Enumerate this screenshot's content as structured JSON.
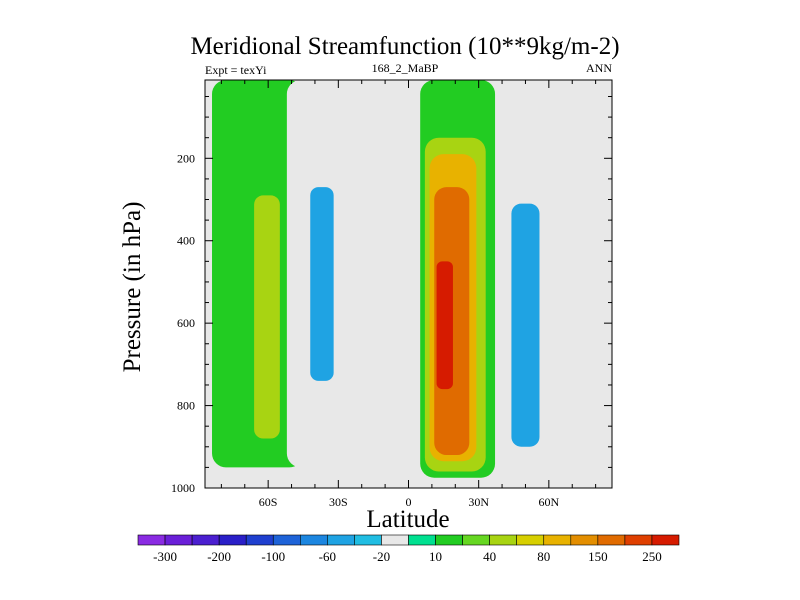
{
  "chart_data": {
    "type": "heatmap",
    "title": "Meridional Streamfunction (10**9kg/m-2)",
    "left_label": "Expt = texYi",
    "center_label": "168_2_MaBP",
    "right_label": "ANN",
    "xlabel": "Latitude",
    "ylabel": "Pressure (in hPa)",
    "x_ticks": [
      {
        "value": -60,
        "label": "60S"
      },
      {
        "value": -30,
        "label": "30S"
      },
      {
        "value": 0,
        "label": "0"
      },
      {
        "value": 30,
        "label": "30N"
      },
      {
        "value": 60,
        "label": "60N"
      }
    ],
    "y_ticks": [
      {
        "value": 200,
        "label": "200"
      },
      {
        "value": 400,
        "label": "400"
      },
      {
        "value": 600,
        "label": "600"
      },
      {
        "value": 800,
        "label": "800"
      },
      {
        "value": 1000,
        "label": "1000"
      }
    ],
    "xlim": [
      -87,
      87
    ],
    "ylim": [
      1000,
      10
    ],
    "colorbar": {
      "colors": [
        "#8a2be2",
        "#6a1fd8",
        "#4b1fd0",
        "#2a1fc8",
        "#1f3fcf",
        "#1e63d8",
        "#1c86e0",
        "#1fa3e3",
        "#20bde2",
        "#e8e8e8",
        "#00e090",
        "#22cc22",
        "#66d722",
        "#a8d412",
        "#d7cf00",
        "#e8b200",
        "#e38e00",
        "#e06b00",
        "#df3f00",
        "#d61b00"
      ],
      "labels": [
        "-300",
        "-200",
        "-100",
        "-60",
        "-20",
        "10",
        "40",
        "80",
        "150",
        "250"
      ],
      "label_boundaries": [
        1,
        3,
        5,
        7,
        9,
        11,
        13,
        15,
        17,
        19
      ]
    },
    "contour_regions": [
      {
        "name": "sh-outer-cell",
        "level": 10,
        "lat": [
          -84,
          -45
        ],
        "p_top": 10,
        "p_bottom": 950
      },
      {
        "name": "sh-outer-core",
        "level": 40,
        "lat": [
          -66,
          -55
        ],
        "p_top": 290,
        "p_bottom": 880
      },
      {
        "name": "sh-ferrel",
        "level": -20,
        "lat": [
          -52,
          -20
        ],
        "p_top": 10,
        "p_bottom": 950
      },
      {
        "name": "sh-ferrel-core",
        "level": -60,
        "lat": [
          -42,
          -32
        ],
        "p_top": 270,
        "p_bottom": 740
      },
      {
        "name": "tropical-cell",
        "level": 10,
        "lat": [
          5,
          37
        ],
        "p_top": 10,
        "p_bottom": 975
      },
      {
        "name": "tropical-cell-40",
        "level": 40,
        "lat": [
          7,
          33
        ],
        "p_top": 150,
        "p_bottom": 960
      },
      {
        "name": "tropical-cell-80",
        "level": 80,
        "lat": [
          9,
          29
        ],
        "p_top": 190,
        "p_bottom": 935
      },
      {
        "name": "tropical-cell-150",
        "level": 150,
        "lat": [
          11,
          26
        ],
        "p_top": 270,
        "p_bottom": 920
      },
      {
        "name": "tropical-cell-250",
        "level": 250,
        "lat": [
          12,
          19
        ],
        "p_top": 450,
        "p_bottom": 760
      },
      {
        "name": "nh-ferrel",
        "level": -20,
        "lat": [
          40,
          66
        ],
        "p_top": 10,
        "p_bottom": 940
      },
      {
        "name": "nh-ferrel-core",
        "level": -60,
        "lat": [
          44,
          56
        ],
        "p_top": 310,
        "p_bottom": 900
      }
    ]
  }
}
